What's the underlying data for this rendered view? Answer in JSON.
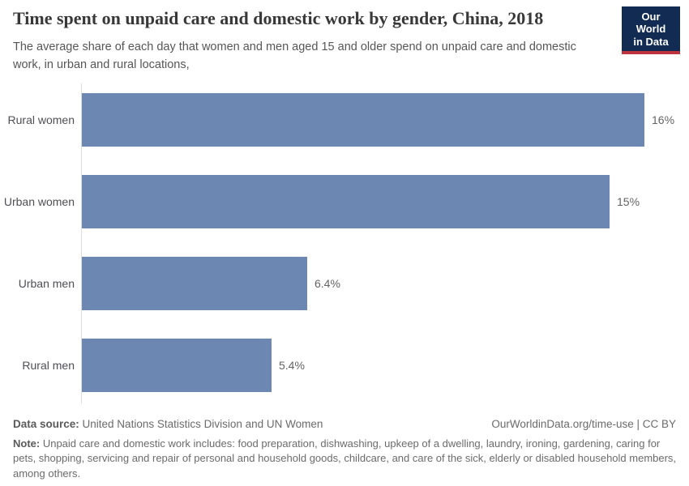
{
  "header": {
    "title": "Time spent on unpaid care and domestic work by gender, China, 2018",
    "subtitle": "The average share of each day that women and men aged 15 and older spend on unpaid care and domestic work, in urban and rural locations,",
    "logo": {
      "line1": "Our World",
      "line2": "in Data",
      "background_color": "#122b52",
      "stripe_color": "#c0343f"
    }
  },
  "chart_data": {
    "type": "bar",
    "orientation": "horizontal",
    "title": "Time spent on unpaid care and domestic work by gender, China, 2018",
    "categories": [
      "Rural women",
      "Urban women",
      "Urban men",
      "Rural men"
    ],
    "values": [
      16,
      15,
      6.4,
      5.4
    ],
    "value_labels": [
      "16%",
      "15%",
      "6.4%",
      "5.4%"
    ],
    "unit": "%",
    "xlim": [
      0,
      16
    ],
    "grid": false,
    "legend": "none",
    "bar_color": "#6c87b1",
    "axis_line_color": "#dddddd"
  },
  "footer": {
    "data_source_label": "Data source:",
    "data_source_text": " United Nations Statistics Division and UN Women",
    "attribution": "OurWorldinData.org/time-use | CC BY",
    "note_label": "Note:",
    "note_text": " Unpaid care and domestic work includes: food preparation, dishwashing, upkeep of a dwelling, laundry, ironing, gardening, caring for pets, shopping, servicing and repair of personal and household goods, childcare, and care of the sick, elderly or disabled household members, among others."
  }
}
